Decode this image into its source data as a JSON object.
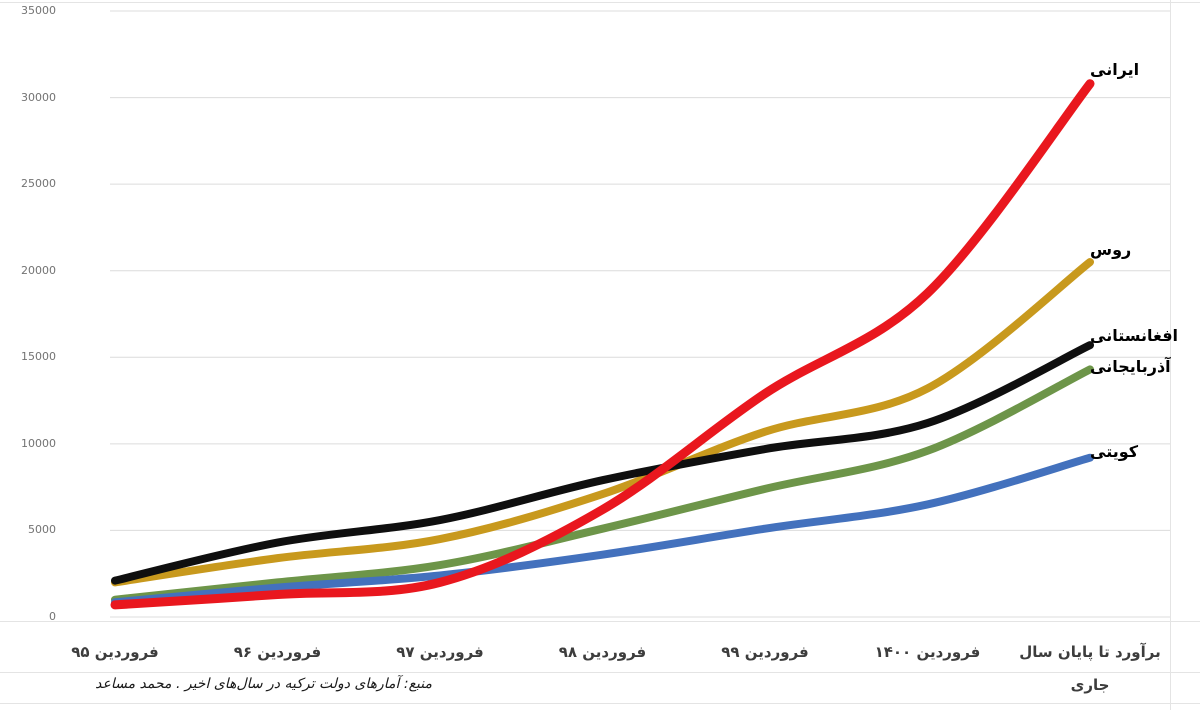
{
  "chart_data": {
    "type": "line",
    "title": "",
    "xlabel": "",
    "ylabel": "",
    "ylim": [
      0,
      35000
    ],
    "y_ticks": [
      0,
      5000,
      10000,
      15000,
      20000,
      25000,
      30000,
      35000
    ],
    "grid": "horizontal",
    "legend_position": "labels at line ends (right side)",
    "line_style": "smoothed, thick (~8px)",
    "categories": [
      "فروردین ۹۵",
      "فروردین ۹۶",
      "فروردین ۹۷",
      "فروردین ۹۸",
      "فروردین ۹۹",
      "فروردین ۱۴۰۰",
      "برآورد تا پایان سال جاری"
    ],
    "x_labels_display": [
      "فروردین ۹۵",
      "فروردین ۹۶",
      "فروردین ۹۷",
      "فروردین ۹۸",
      "فروردین ۹۹",
      "فروردین ۱۴۰۰",
      "برآورد تا پایان سال\nجاری"
    ],
    "series": [
      {
        "name": "ایرانی",
        "name_en": "iranian",
        "color": "#e9171e",
        "values": [
          700,
          1300,
          2000,
          6200,
          12900,
          18700,
          30800
        ]
      },
      {
        "name": "روس",
        "name_en": "russian",
        "color": "#c8991d",
        "values": [
          2000,
          3400,
          4500,
          7100,
          10700,
          13200,
          20500
        ]
      },
      {
        "name": "افغانستانی",
        "name_en": "afghan",
        "color": "#0f0f0f",
        "values": [
          2100,
          4300,
          5600,
          7900,
          9700,
          11200,
          15700
        ]
      },
      {
        "name": "آذربایجانی",
        "name_en": "azerbaijani",
        "color": "#6d9549",
        "values": [
          1000,
          2000,
          3000,
          5100,
          7400,
          9600,
          14300
        ]
      },
      {
        "name": "کویتی",
        "name_en": "kuwaiti",
        "color": "#4371bd",
        "values": [
          850,
          1700,
          2400,
          3600,
          5100,
          6500,
          9200
        ]
      }
    ]
  },
  "colors": {
    "background": "#ffffff",
    "gridline": "#dcdcdc",
    "cell_border": "#e4e4e4",
    "tick_label": "#737373",
    "axis_label": "#3d3d3d"
  },
  "source_note": "منبع: آمارهای دولت ترکیه در سال‌های اخیر . محمد مساعد"
}
